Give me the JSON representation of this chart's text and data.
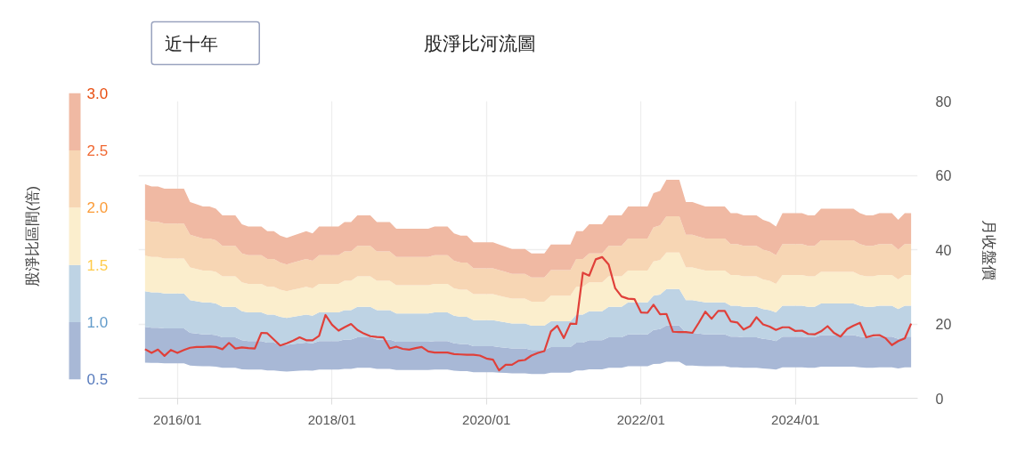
{
  "chart_data": {
    "type": "area",
    "title": "股淨比河流圖",
    "ylabel": "月收盤價",
    "clabel": "股淨比區間(倍)",
    "annotations": [
      "近十年"
    ],
    "x": [
      "2015-08",
      "2015-09",
      "2015-10",
      "2015-11",
      "2015-12",
      "2016-01",
      "2016-02",
      "2016-03",
      "2016-04",
      "2016-05",
      "2016-06",
      "2016-07",
      "2016-08",
      "2016-09",
      "2016-10",
      "2016-11",
      "2016-12",
      "2017-01",
      "2017-02",
      "2017-03",
      "2017-04",
      "2017-05",
      "2017-06",
      "2017-07",
      "2017-08",
      "2017-09",
      "2017-10",
      "2017-11",
      "2017-12",
      "2018-01",
      "2018-02",
      "2018-03",
      "2018-04",
      "2018-05",
      "2018-06",
      "2018-07",
      "2018-08",
      "2018-09",
      "2018-10",
      "2018-11",
      "2018-12",
      "2019-01",
      "2019-02",
      "2019-03",
      "2019-04",
      "2019-05",
      "2019-06",
      "2019-07",
      "2019-08",
      "2019-09",
      "2019-10",
      "2019-11",
      "2019-12",
      "2020-01",
      "2020-02",
      "2020-03",
      "2020-04",
      "2020-05",
      "2020-06",
      "2020-07",
      "2020-08",
      "2020-09",
      "2020-10",
      "2020-11",
      "2020-12",
      "2021-01",
      "2021-02",
      "2021-03",
      "2021-04",
      "2021-05",
      "2021-06",
      "2021-07",
      "2021-08",
      "2021-09",
      "2021-10",
      "2021-11",
      "2021-12",
      "2022-01",
      "2022-02",
      "2022-03",
      "2022-04",
      "2022-05",
      "2022-06",
      "2022-07",
      "2022-08",
      "2022-09",
      "2022-10",
      "2022-11",
      "2022-12",
      "2023-01",
      "2023-02",
      "2023-03",
      "2023-04",
      "2023-05",
      "2023-06",
      "2023-07",
      "2023-08",
      "2023-09",
      "2023-10",
      "2023-11",
      "2023-12",
      "2024-01",
      "2024-02",
      "2024-03",
      "2024-04",
      "2024-05",
      "2024-06",
      "2024-07",
      "2024-08",
      "2024-09",
      "2024-10",
      "2024-11",
      "2024-12",
      "2025-01",
      "2025-02",
      "2025-03",
      "2025-04",
      "2025-05",
      "2025-06",
      "2025-07"
    ],
    "series": [
      {
        "color": "#a8b8d6",
        "values": [
          null,
          null,
          null,
          null,
          null,
          null,
          null,
          null,
          null,
          null,
          null,
          null,
          null,
          null,
          null,
          null,
          null,
          null,
          null,
          null,
          null,
          null,
          null,
          null,
          null,
          null,
          null,
          null,
          null,
          null,
          null,
          null,
          null,
          null,
          null,
          null,
          null,
          null,
          null,
          null,
          null,
          null,
          null,
          null,
          null,
          null,
          null,
          null,
          null,
          null,
          null,
          null,
          null,
          null,
          null,
          null,
          null,
          null,
          null,
          null,
          null,
          null,
          null,
          null,
          null,
          null,
          null,
          null,
          null,
          null,
          null,
          null,
          null,
          null,
          null,
          null,
          null,
          null,
          null,
          null,
          null,
          null,
          null,
          null,
          null,
          null,
          null,
          null,
          null,
          null,
          null,
          null,
          null,
          null,
          null,
          null,
          null,
          null,
          null,
          null,
          null,
          null,
          null,
          null,
          null,
          null,
          null,
          null,
          null,
          null,
          null,
          null,
          null,
          null,
          null,
          null,
          null,
          null,
          null,
          null
        ],
        "lower": [
          9.6,
          9.5,
          9.5,
          9.4,
          9.4,
          9.4,
          9.4,
          8.8,
          8.7,
          8.6,
          8.6,
          8.5,
          8.2,
          8.2,
          8.2,
          7.8,
          7.7,
          7.7,
          7.7,
          7.5,
          7.5,
          7.3,
          7.2,
          7.3,
          7.4,
          7.5,
          7.4,
          7.7,
          7.7,
          7.7,
          7.7,
          7.9,
          7.9,
          8.2,
          8.2,
          8.2,
          7.9,
          7.9,
          7.9,
          7.6,
          7.6,
          7.6,
          7.6,
          7.6,
          7.6,
          7.7,
          7.7,
          7.7,
          7.4,
          7.3,
          7.3,
          7.0,
          7.0,
          7.0,
          7.0,
          6.9,
          6.8,
          6.7,
          6.7,
          6.7,
          6.5,
          6.5,
          6.5,
          6.9,
          6.9,
          6.9,
          6.9,
          7.5,
          7.5,
          7.8,
          7.8,
          7.8,
          8.2,
          8.2,
          8.2,
          8.6,
          8.6,
          8.6,
          8.6,
          9.2,
          9.3,
          9.8,
          9.8,
          9.8,
          8.8,
          8.8,
          8.7,
          8.6,
          8.6,
          8.6,
          8.6,
          8.3,
          8.3,
          8.2,
          8.2,
          8.2,
          8.0,
          7.9,
          7.7,
          8.3,
          8.3,
          8.3,
          8.3,
          8.2,
          8.2,
          8.5,
          8.5,
          8.5,
          8.5,
          8.5,
          8.5,
          8.3,
          8.2,
          8.2,
          8.3,
          8.3,
          8.3,
          8.0,
          8.3,
          8.3
        ],
        "upper": [
          19.2,
          19.0,
          19.0,
          18.8,
          18.8,
          18.8,
          18.8,
          17.6,
          17.4,
          17.2,
          17.2,
          17.0,
          16.4,
          16.4,
          16.4,
          15.6,
          15.4,
          15.4,
          15.4,
          15.0,
          15.0,
          14.6,
          14.4,
          14.6,
          14.8,
          15.0,
          14.8,
          15.4,
          15.4,
          15.4,
          15.4,
          15.8,
          15.8,
          16.4,
          16.4,
          16.4,
          15.8,
          15.8,
          15.8,
          15.2,
          15.2,
          15.2,
          15.2,
          15.2,
          15.2,
          15.4,
          15.4,
          15.4,
          14.8,
          14.6,
          14.6,
          14.0,
          14.0,
          14.0,
          14.0,
          13.8,
          13.6,
          13.4,
          13.4,
          13.4,
          13.0,
          13.0,
          13.0,
          13.8,
          13.8,
          13.8,
          13.8,
          15.0,
          15.0,
          15.6,
          15.6,
          15.6,
          16.4,
          16.4,
          16.4,
          17.2,
          17.2,
          17.2,
          17.2,
          18.4,
          18.6,
          19.6,
          19.6,
          19.6,
          17.6,
          17.6,
          17.4,
          17.2,
          17.2,
          17.2,
          17.2,
          16.6,
          16.6,
          16.4,
          16.4,
          16.4,
          16.0,
          15.8,
          15.4,
          16.6,
          16.6,
          16.6,
          16.6,
          16.4,
          16.4,
          17.0,
          17.0,
          17.0,
          17.0,
          17.0,
          17.0,
          16.6,
          16.4,
          16.4,
          16.6,
          16.6,
          16.6,
          16.0,
          16.6,
          16.6
        ]
      },
      {
        "color": "#bed3e4",
        "values": [
          null,
          null,
          null,
          null,
          null,
          null,
          null,
          null,
          null,
          null,
          null,
          null,
          null,
          null,
          null,
          null,
          null,
          null,
          null,
          null,
          null,
          null,
          null,
          null,
          null,
          null,
          null,
          null,
          null,
          null,
          null,
          null,
          null,
          null,
          null,
          null,
          null,
          null,
          null,
          null,
          null,
          null,
          null,
          null,
          null,
          null,
          null,
          null,
          null,
          null,
          null,
          null,
          null,
          null,
          null,
          null,
          null,
          null,
          null,
          null,
          null,
          null,
          null,
          null,
          null,
          null,
          null,
          null,
          null,
          null,
          null,
          null,
          null,
          null,
          null,
          null,
          null,
          null,
          null,
          null,
          null,
          null,
          null,
          null,
          null,
          null,
          null,
          null,
          null,
          null,
          null,
          null,
          null,
          null,
          null,
          null,
          null,
          null,
          null,
          null,
          null,
          null,
          null,
          null,
          null,
          null,
          null,
          null,
          null,
          null,
          null,
          null,
          null,
          null,
          null,
          null,
          null,
          null,
          null,
          null
        ],
        "lower": [
          19.2,
          19.0,
          19.0,
          18.8,
          18.8,
          18.8,
          18.8,
          17.6,
          17.4,
          17.2,
          17.2,
          17.0,
          16.4,
          16.4,
          16.4,
          15.6,
          15.4,
          15.4,
          15.4,
          15.0,
          15.0,
          14.6,
          14.4,
          14.6,
          14.8,
          15.0,
          14.8,
          15.4,
          15.4,
          15.4,
          15.4,
          15.8,
          15.8,
          16.4,
          16.4,
          16.4,
          15.8,
          15.8,
          15.8,
          15.2,
          15.2,
          15.2,
          15.2,
          15.2,
          15.2,
          15.4,
          15.4,
          15.4,
          14.8,
          14.6,
          14.6,
          14.0,
          14.0,
          14.0,
          14.0,
          13.8,
          13.6,
          13.4,
          13.4,
          13.4,
          13.0,
          13.0,
          13.0,
          13.8,
          13.8,
          13.8,
          13.8,
          15.0,
          15.0,
          15.6,
          15.6,
          15.6,
          16.4,
          16.4,
          16.4,
          17.2,
          17.2,
          17.2,
          17.2,
          18.4,
          18.6,
          19.6,
          19.6,
          19.6,
          17.6,
          17.6,
          17.4,
          17.2,
          17.2,
          17.2,
          17.2,
          16.6,
          16.6,
          16.4,
          16.4,
          16.4,
          16.0,
          15.8,
          15.4,
          16.6,
          16.6,
          16.6,
          16.6,
          16.4,
          16.4,
          17.0,
          17.0,
          17.0,
          17.0,
          17.0,
          17.0,
          16.6,
          16.4,
          16.4,
          16.6,
          16.6,
          16.6,
          16.0,
          16.6,
          16.6
        ],
        "upper": [
          28.8,
          28.5,
          28.5,
          28.2,
          28.2,
          28.2,
          28.2,
          26.4,
          26.1,
          25.8,
          25.8,
          25.5,
          24.6,
          24.6,
          24.6,
          23.4,
          23.1,
          23.1,
          23.1,
          22.5,
          22.5,
          21.9,
          21.6,
          21.9,
          22.2,
          22.5,
          22.2,
          23.1,
          23.1,
          23.1,
          23.1,
          23.7,
          23.7,
          24.6,
          24.6,
          24.6,
          23.7,
          23.7,
          23.7,
          22.8,
          22.8,
          22.8,
          22.8,
          22.8,
          22.8,
          23.1,
          23.1,
          23.1,
          22.2,
          21.9,
          21.9,
          21.0,
          21.0,
          21.0,
          21.0,
          20.7,
          20.4,
          20.1,
          20.1,
          20.1,
          19.5,
          19.5,
          19.5,
          20.7,
          20.7,
          20.7,
          20.7,
          22.5,
          22.5,
          23.4,
          23.4,
          23.4,
          24.6,
          24.6,
          24.6,
          25.8,
          25.8,
          25.8,
          25.8,
          27.6,
          27.9,
          29.4,
          29.4,
          29.4,
          26.4,
          26.4,
          26.1,
          25.8,
          25.8,
          25.8,
          25.8,
          24.9,
          24.9,
          24.6,
          24.6,
          24.6,
          24.0,
          23.7,
          23.1,
          24.9,
          24.9,
          24.9,
          24.9,
          24.6,
          24.6,
          25.5,
          25.5,
          25.5,
          25.5,
          25.5,
          25.5,
          24.9,
          24.6,
          24.6,
          24.9,
          24.9,
          24.9,
          24.0,
          24.9,
          24.9
        ]
      },
      {
        "color": "#fbeecd",
        "values": [
          null,
          null,
          null,
          null,
          null,
          null,
          null,
          null,
          null,
          null,
          null,
          null,
          null,
          null,
          null,
          null,
          null,
          null,
          null,
          null,
          null,
          null,
          null,
          null,
          null,
          null,
          null,
          null,
          null,
          null,
          null,
          null,
          null,
          null,
          null,
          null,
          null,
          null,
          null,
          null,
          null,
          null,
          null,
          null,
          null,
          null,
          null,
          null,
          null,
          null,
          null,
          null,
          null,
          null,
          null,
          null,
          null,
          null,
          null,
          null,
          null,
          null,
          null,
          null,
          null,
          null,
          null,
          null,
          null,
          null,
          null,
          null,
          null,
          null,
          null,
          null,
          null,
          null,
          null,
          null,
          null,
          null,
          null,
          null,
          null,
          null,
          null,
          null,
          null,
          null,
          null,
          null,
          null,
          null,
          null,
          null,
          null,
          null,
          null,
          null,
          null,
          null,
          null,
          null,
          null,
          null,
          null,
          null,
          null,
          null,
          null,
          null,
          null,
          null,
          null,
          null,
          null,
          null,
          null,
          null
        ],
        "lower": [
          28.8,
          28.5,
          28.5,
          28.2,
          28.2,
          28.2,
          28.2,
          26.4,
          26.1,
          25.8,
          25.8,
          25.5,
          24.6,
          24.6,
          24.6,
          23.4,
          23.1,
          23.1,
          23.1,
          22.5,
          22.5,
          21.9,
          21.6,
          21.9,
          22.2,
          22.5,
          22.2,
          23.1,
          23.1,
          23.1,
          23.1,
          23.7,
          23.7,
          24.6,
          24.6,
          24.6,
          23.7,
          23.7,
          23.7,
          22.8,
          22.8,
          22.8,
          22.8,
          22.8,
          22.8,
          23.1,
          23.1,
          23.1,
          22.2,
          21.9,
          21.9,
          21.0,
          21.0,
          21.0,
          21.0,
          20.7,
          20.4,
          20.1,
          20.1,
          20.1,
          19.5,
          19.5,
          19.5,
          20.7,
          20.7,
          20.7,
          20.7,
          22.5,
          22.5,
          23.4,
          23.4,
          23.4,
          24.6,
          24.6,
          24.6,
          25.8,
          25.8,
          25.8,
          25.8,
          27.6,
          27.9,
          29.4,
          29.4,
          29.4,
          26.4,
          26.4,
          26.1,
          25.8,
          25.8,
          25.8,
          25.8,
          24.9,
          24.9,
          24.6,
          24.6,
          24.6,
          24.0,
          23.7,
          23.1,
          24.9,
          24.9,
          24.9,
          24.9,
          24.6,
          24.6,
          25.5,
          25.5,
          25.5,
          25.5,
          25.5,
          25.5,
          24.9,
          24.6,
          24.6,
          24.9,
          24.9,
          24.9,
          24.0,
          24.9,
          24.9
        ],
        "upper": [
          38.4,
          38.0,
          38.0,
          37.6,
          37.6,
          37.6,
          37.6,
          35.2,
          34.8,
          34.4,
          34.4,
          34.0,
          32.8,
          32.8,
          32.8,
          31.2,
          30.8,
          30.8,
          30.8,
          30.0,
          30.0,
          29.2,
          28.8,
          29.2,
          29.6,
          30.0,
          29.6,
          30.8,
          30.8,
          30.8,
          30.8,
          31.6,
          31.6,
          32.8,
          32.8,
          32.8,
          31.6,
          31.6,
          31.6,
          30.4,
          30.4,
          30.4,
          30.4,
          30.4,
          30.4,
          30.8,
          30.8,
          30.8,
          29.6,
          29.2,
          29.2,
          28.0,
          28.0,
          28.0,
          28.0,
          27.6,
          27.2,
          26.8,
          26.8,
          26.8,
          26.0,
          26.0,
          26.0,
          27.6,
          27.6,
          27.6,
          27.6,
          30.0,
          30.0,
          31.2,
          31.2,
          31.2,
          32.8,
          32.8,
          32.8,
          34.4,
          34.4,
          34.4,
          34.4,
          36.8,
          37.2,
          39.2,
          39.2,
          39.2,
          35.2,
          35.2,
          34.8,
          34.4,
          34.4,
          34.4,
          34.4,
          33.2,
          33.2,
          32.8,
          32.8,
          32.8,
          32.0,
          31.6,
          30.8,
          33.2,
          33.2,
          33.2,
          33.2,
          32.8,
          32.8,
          34.0,
          34.0,
          34.0,
          34.0,
          34.0,
          34.0,
          33.2,
          32.8,
          32.8,
          33.2,
          33.2,
          33.2,
          32.0,
          33.2,
          33.2
        ]
      },
      {
        "color": "#f7d6b4",
        "values": [
          null,
          null,
          null,
          null,
          null,
          null,
          null,
          null,
          null,
          null,
          null,
          null,
          null,
          null,
          null,
          null,
          null,
          null,
          null,
          null,
          null,
          null,
          null,
          null,
          null,
          null,
          null,
          null,
          null,
          null,
          null,
          null,
          null,
          null,
          null,
          null,
          null,
          null,
          null,
          null,
          null,
          null,
          null,
          null,
          null,
          null,
          null,
          null,
          null,
          null,
          null,
          null,
          null,
          null,
          null,
          null,
          null,
          null,
          null,
          null,
          null,
          null,
          null,
          null,
          null,
          null,
          null,
          null,
          null,
          null,
          null,
          null,
          null,
          null,
          null,
          null,
          null,
          null,
          null,
          null,
          null,
          null,
          null,
          null,
          null,
          null,
          null,
          null,
          null,
          null,
          null,
          null,
          null,
          null,
          null,
          null,
          null,
          null,
          null,
          null,
          null,
          null,
          null,
          null,
          null,
          null,
          null,
          null,
          null,
          null,
          null,
          null,
          null,
          null,
          null,
          null,
          null,
          null,
          null,
          null
        ],
        "lower": [
          38.4,
          38.0,
          38.0,
          37.6,
          37.6,
          37.6,
          37.6,
          35.2,
          34.8,
          34.4,
          34.4,
          34.0,
          32.8,
          32.8,
          32.8,
          31.2,
          30.8,
          30.8,
          30.8,
          30.0,
          30.0,
          29.2,
          28.8,
          29.2,
          29.6,
          30.0,
          29.6,
          30.8,
          30.8,
          30.8,
          30.8,
          31.6,
          31.6,
          32.8,
          32.8,
          32.8,
          31.6,
          31.6,
          31.6,
          30.4,
          30.4,
          30.4,
          30.4,
          30.4,
          30.4,
          30.8,
          30.8,
          30.8,
          29.6,
          29.2,
          29.2,
          28.0,
          28.0,
          28.0,
          28.0,
          27.6,
          27.2,
          26.8,
          26.8,
          26.8,
          26.0,
          26.0,
          26.0,
          27.6,
          27.6,
          27.6,
          27.6,
          30.0,
          30.0,
          31.2,
          31.2,
          31.2,
          32.8,
          32.8,
          32.8,
          34.4,
          34.4,
          34.4,
          34.4,
          36.8,
          37.2,
          39.2,
          39.2,
          39.2,
          35.2,
          35.2,
          34.8,
          34.4,
          34.4,
          34.4,
          34.4,
          33.2,
          33.2,
          32.8,
          32.8,
          32.8,
          32.0,
          31.6,
          30.8,
          33.2,
          33.2,
          33.2,
          33.2,
          32.8,
          32.8,
          34.0,
          34.0,
          34.0,
          34.0,
          34.0,
          34.0,
          33.2,
          32.8,
          32.8,
          33.2,
          33.2,
          33.2,
          32.0,
          33.2,
          33.2
        ],
        "upper": [
          48.0,
          47.5,
          47.5,
          47.0,
          47.0,
          47.0,
          47.0,
          44.0,
          43.5,
          43.0,
          43.0,
          42.5,
          41.0,
          41.0,
          41.0,
          39.0,
          38.5,
          38.5,
          38.5,
          37.5,
          37.5,
          36.5,
          36.0,
          36.5,
          37.0,
          37.5,
          37.0,
          38.5,
          38.5,
          38.5,
          38.5,
          39.5,
          39.5,
          41.0,
          41.0,
          41.0,
          39.5,
          39.5,
          39.5,
          38.0,
          38.0,
          38.0,
          38.0,
          38.0,
          38.0,
          38.5,
          38.5,
          38.5,
          37.0,
          36.5,
          36.5,
          35.0,
          35.0,
          35.0,
          35.0,
          34.5,
          34.0,
          33.5,
          33.5,
          33.5,
          32.5,
          32.5,
          32.5,
          34.5,
          34.5,
          34.5,
          34.5,
          37.5,
          37.5,
          39.0,
          39.0,
          39.0,
          41.0,
          41.0,
          41.0,
          43.0,
          43.0,
          43.0,
          43.0,
          46.0,
          46.5,
          49.0,
          49.0,
          49.0,
          44.0,
          44.0,
          43.5,
          43.0,
          43.0,
          43.0,
          43.0,
          41.5,
          41.5,
          41.0,
          41.0,
          41.0,
          40.0,
          39.5,
          38.5,
          41.5,
          41.5,
          41.5,
          41.5,
          41.0,
          41.0,
          42.5,
          42.5,
          42.5,
          42.5,
          42.5,
          42.5,
          41.5,
          41.0,
          41.0,
          41.5,
          41.5,
          41.5,
          40.0,
          41.5,
          41.5
        ]
      },
      {
        "color": "#f0b9a3",
        "values": [
          null,
          null,
          null,
          null,
          null,
          null,
          null,
          null,
          null,
          null,
          null,
          null,
          null,
          null,
          null,
          null,
          null,
          null,
          null,
          null,
          null,
          null,
          null,
          null,
          null,
          null,
          null,
          null,
          null,
          null,
          null,
          null,
          null,
          null,
          null,
          null,
          null,
          null,
          null,
          null,
          null,
          null,
          null,
          null,
          null,
          null,
          null,
          null,
          null,
          null,
          null,
          null,
          null,
          null,
          null,
          null,
          null,
          null,
          null,
          null,
          null,
          null,
          null,
          null,
          null,
          null,
          null,
          null,
          null,
          null,
          null,
          null,
          null,
          null,
          null,
          null,
          null,
          null,
          null,
          null,
          null,
          null,
          null,
          null,
          null,
          null,
          null,
          null,
          null,
          null,
          null,
          null,
          null,
          null,
          null,
          null,
          null,
          null,
          null,
          null,
          null,
          null,
          null,
          null,
          null,
          null,
          null,
          null,
          null,
          null,
          null,
          null,
          null,
          null,
          null,
          null,
          null,
          null,
          null,
          null
        ],
        "lower": [
          48.0,
          47.5,
          47.5,
          47.0,
          47.0,
          47.0,
          47.0,
          44.0,
          43.5,
          43.0,
          43.0,
          42.5,
          41.0,
          41.0,
          41.0,
          39.0,
          38.5,
          38.5,
          38.5,
          37.5,
          37.5,
          36.5,
          36.0,
          36.5,
          37.0,
          37.5,
          37.0,
          38.5,
          38.5,
          38.5,
          38.5,
          39.5,
          39.5,
          41.0,
          41.0,
          41.0,
          39.5,
          39.5,
          39.5,
          38.0,
          38.0,
          38.0,
          38.0,
          38.0,
          38.0,
          38.5,
          38.5,
          38.5,
          37.0,
          36.5,
          36.5,
          35.0,
          35.0,
          35.0,
          35.0,
          34.5,
          34.0,
          33.5,
          33.5,
          33.5,
          32.5,
          32.5,
          32.5,
          34.5,
          34.5,
          34.5,
          34.5,
          37.5,
          37.5,
          39.0,
          39.0,
          39.0,
          41.0,
          41.0,
          41.0,
          43.0,
          43.0,
          43.0,
          43.0,
          46.0,
          46.5,
          49.0,
          49.0,
          49.0,
          44.0,
          44.0,
          43.5,
          43.0,
          43.0,
          43.0,
          43.0,
          41.5,
          41.5,
          41.0,
          41.0,
          41.0,
          40.0,
          39.5,
          38.5,
          41.5,
          41.5,
          41.5,
          41.5,
          41.0,
          41.0,
          42.5,
          42.5,
          42.5,
          42.5,
          42.5,
          42.5,
          41.5,
          41.0,
          41.0,
          41.5,
          41.5,
          41.5,
          40.0,
          41.5,
          41.5
        ],
        "upper": [
          57.6,
          57.0,
          57.0,
          56.4,
          56.4,
          56.4,
          56.4,
          52.8,
          52.2,
          51.6,
          51.6,
          51.0,
          49.2,
          49.2,
          49.2,
          46.8,
          46.2,
          46.2,
          46.2,
          45.0,
          45.0,
          43.8,
          43.2,
          43.8,
          44.4,
          45.0,
          44.4,
          46.2,
          46.2,
          46.2,
          46.2,
          47.4,
          47.4,
          49.2,
          49.2,
          49.2,
          47.4,
          47.4,
          47.4,
          45.6,
          45.6,
          45.6,
          45.6,
          45.6,
          45.6,
          46.2,
          46.2,
          46.2,
          44.4,
          43.8,
          43.8,
          42.0,
          42.0,
          42.0,
          42.0,
          41.4,
          40.8,
          40.2,
          40.2,
          40.2,
          39.0,
          39.0,
          39.0,
          41.4,
          41.4,
          41.4,
          41.4,
          45.0,
          45.0,
          46.8,
          46.8,
          46.8,
          49.2,
          49.2,
          49.2,
          51.6,
          51.6,
          51.6,
          51.6,
          55.2,
          55.8,
          58.8,
          58.8,
          58.8,
          52.8,
          52.8,
          52.2,
          51.6,
          51.6,
          51.6,
          51.6,
          49.8,
          49.8,
          49.2,
          49.2,
          49.2,
          48.0,
          47.4,
          46.2,
          49.8,
          49.8,
          49.8,
          49.8,
          49.2,
          49.2,
          51.0,
          51.0,
          51.0,
          51.0,
          51.0,
          51.0,
          49.8,
          49.2,
          49.2,
          49.8,
          49.8,
          49.8,
          48.0,
          49.8,
          49.8
        ]
      },
      {
        "type": "line",
        "color": "#e0403a",
        "values": [
          13.2,
          12.2,
          13.1,
          11.4,
          13.0,
          12.2,
          13.0,
          13.6,
          13.8,
          13.8,
          13.9,
          13.8,
          13.2,
          14.9,
          13.4,
          13.7,
          13.5,
          13.4,
          17.6,
          17.5,
          15.8,
          14.2,
          14.8,
          15.5,
          16.4,
          15.6,
          15.6,
          16.8,
          22.4,
          19.8,
          18.2,
          19.1,
          20.0,
          18.4,
          17.4,
          16.7,
          16.5,
          16.4,
          13.4,
          13.9,
          13.3,
          13.1,
          13.5,
          13.8,
          12.6,
          12.3,
          12.3,
          12.3,
          11.9,
          11.8,
          11.7,
          11.7,
          11.5,
          10.7,
          10.4,
          7.5,
          9.0,
          9.0,
          10.1,
          10.3,
          11.5,
          12.2,
          12.7,
          18.0,
          19.5,
          16.2,
          20.1,
          20.0,
          33.8,
          33.0,
          37.4,
          38.0,
          36.0,
          29.6,
          27.4,
          26.8,
          26.7,
          23.1,
          23.0,
          25.2,
          22.6,
          22.7,
          17.9,
          17.8,
          17.8,
          17.6,
          20.3,
          23.3,
          21.4,
          23.5,
          23.5,
          20.7,
          20.4,
          18.5,
          19.4,
          21.8,
          19.9,
          19.3,
          18.4,
          19.1,
          19.1,
          18.1,
          18.2,
          17.3,
          17.2,
          18.0,
          19.4,
          17.6,
          16.6,
          18.6,
          19.5,
          20.3,
          16.4,
          16.9,
          17.0,
          16.2,
          14.3,
          15.4,
          16.1,
          20.1
        ]
      }
    ],
    "xlim": [
      "2015-07",
      "2025-08"
    ],
    "xticks": [
      {
        "value": "2016-01",
        "label": "2016/01"
      },
      {
        "value": "2018-01",
        "label": "2018/01"
      },
      {
        "value": "2020-01",
        "label": "2020/01"
      },
      {
        "value": "2022-01",
        "label": "2022/01"
      },
      {
        "value": "2024-01",
        "label": "2024/01"
      }
    ],
    "ylim": [
      0,
      80
    ],
    "yticks": [
      0,
      20,
      40,
      60,
      80
    ],
    "clim": [
      0.5,
      3
    ],
    "cticks": [
      0.5,
      {
        "value": 1,
        "label": "1.0"
      },
      1.5,
      {
        "value": 2,
        "label": "2.0"
      },
      2.5,
      {
        "value": 3,
        "label": "3.0"
      }
    ],
    "grid": true
  }
}
